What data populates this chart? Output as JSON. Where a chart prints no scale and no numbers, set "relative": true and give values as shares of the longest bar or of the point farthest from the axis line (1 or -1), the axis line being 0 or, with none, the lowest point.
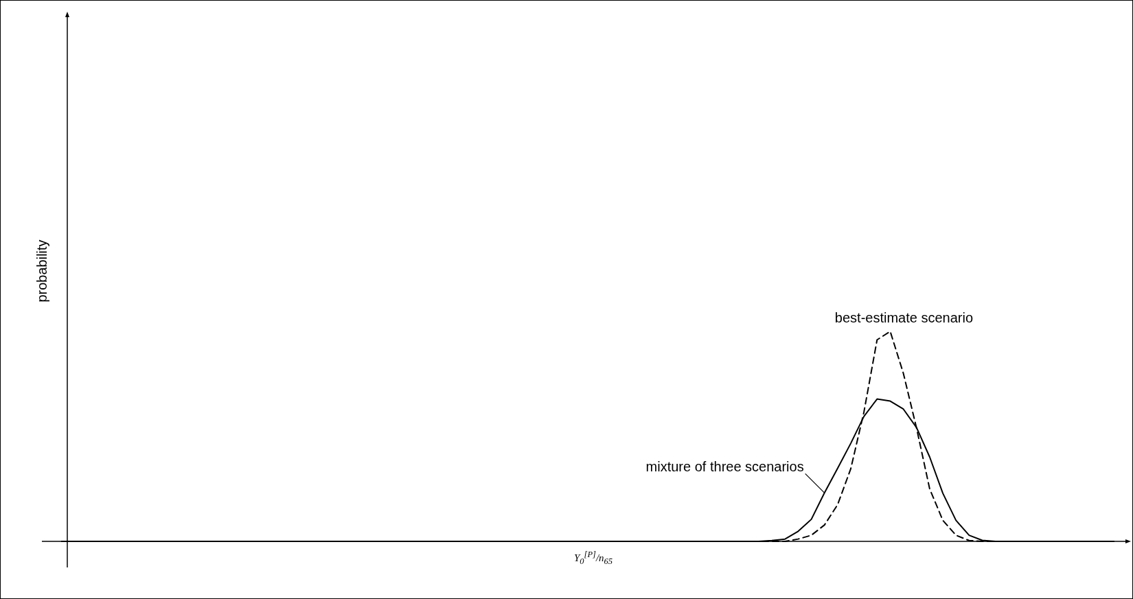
{
  "chart_data": {
    "type": "line",
    "relative": true,
    "xlabel": "Y$_{0}$$^{[P]}$/n$_{65}$",
    "ylabel": "probability",
    "marker": "none",
    "grid": false,
    "categories": [
      null,
      null,
      null,
      null,
      null,
      null,
      null,
      null,
      null,
      null,
      null,
      null,
      null,
      null,
      null,
      null,
      null,
      null,
      null,
      null,
      null,
      null,
      null,
      null,
      null,
      null,
      null,
      null,
      null,
      null,
      null,
      null,
      null,
      null,
      null,
      null,
      null,
      null,
      null,
      null,
      null,
      null,
      null,
      null,
      null,
      null,
      null,
      null,
      null,
      null,
      null,
      null,
      null,
      null,
      null,
      null,
      null,
      null,
      null,
      null,
      null,
      null,
      null,
      null,
      null,
      null,
      null,
      null,
      null,
      null,
      null,
      null,
      null,
      null,
      null,
      null,
      null,
      null,
      null,
      null,
      null
    ],
    "series": [
      {
        "name": "mixture of three scenarios",
        "color": "#000000",
        "line_style": "solid",
        "values": [
          0,
          0,
          0,
          0,
          0,
          0,
          0,
          0,
          0,
          0,
          0,
          0,
          0,
          0,
          0,
          0,
          0,
          0,
          0,
          0,
          0,
          0,
          0,
          0,
          0,
          0,
          0,
          0,
          0,
          0,
          0,
          0,
          0,
          0,
          0,
          0,
          0,
          0,
          0,
          0,
          0,
          0,
          0,
          0,
          0,
          0,
          0,
          0,
          0,
          0,
          0,
          0,
          0,
          0,
          0.004,
          0.011,
          0.048,
          0.105,
          0.231,
          0.348,
          0.467,
          0.595,
          0.678,
          0.668,
          0.63,
          0.542,
          0.402,
          0.229,
          0.1,
          0.029,
          0.005,
          0,
          0,
          0,
          0,
          0,
          0,
          0,
          0,
          0,
          0
        ]
      },
      {
        "name": "best-estimate scenario",
        "color": "#000000",
        "line_style": "dashed",
        "values": [
          0,
          0,
          0,
          0,
          0,
          0,
          0,
          0,
          0,
          0,
          0,
          0,
          0,
          0,
          0,
          0,
          0,
          0,
          0,
          0,
          0,
          0,
          0,
          0,
          0,
          0,
          0,
          0,
          0,
          0,
          0,
          0,
          0,
          0,
          0,
          0,
          0,
          0,
          0,
          0,
          0,
          0,
          0,
          0,
          0,
          0,
          0,
          0,
          0,
          0,
          0,
          0,
          0,
          0,
          0,
          0,
          0.011,
          0.029,
          0.078,
          0.175,
          0.346,
          0.616,
          0.96,
          1,
          0.8,
          0.54,
          0.25,
          0.1,
          0.029,
          0.004,
          0,
          0,
          0,
          0,
          0,
          0,
          0,
          0,
          0,
          0,
          0
        ]
      }
    ]
  }
}
